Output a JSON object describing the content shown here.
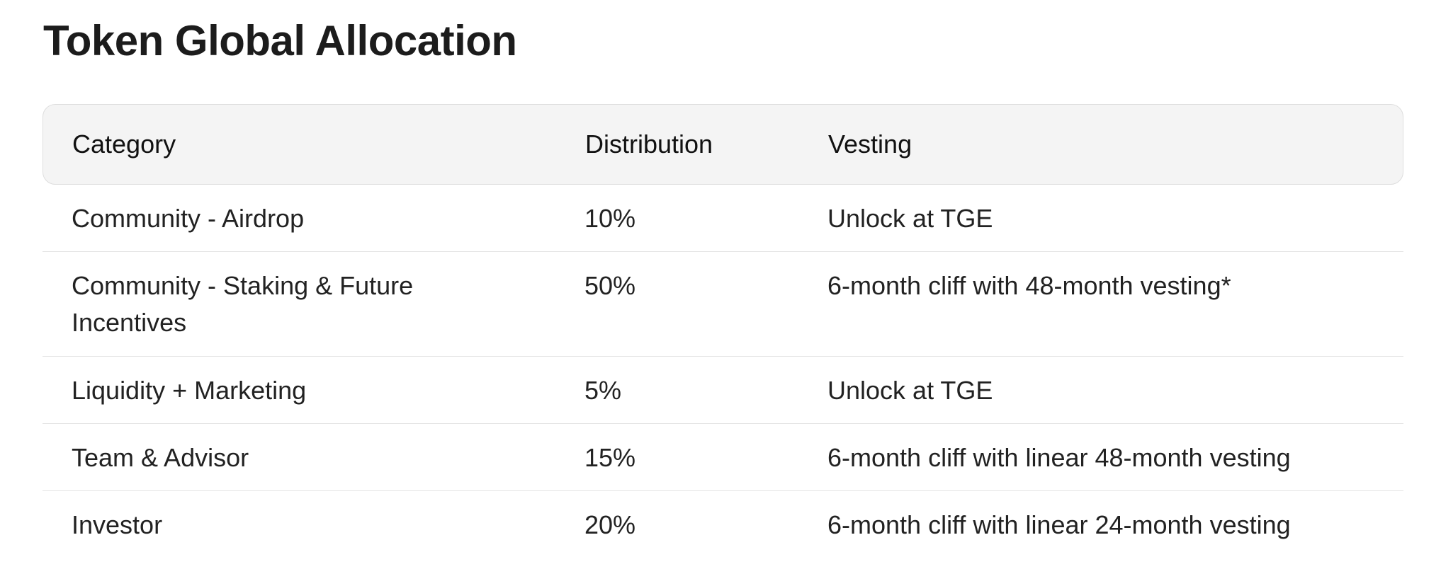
{
  "title": "Token Global Allocation",
  "table": {
    "headers": {
      "category": "Category",
      "distribution": "Distribution",
      "vesting": "Vesting"
    },
    "rows": [
      {
        "category": "Community - Airdrop",
        "distribution": "10%",
        "vesting": "Unlock at TGE"
      },
      {
        "category": "Community - Staking & Future Incentives",
        "distribution": "50%",
        "vesting": "6-month cliff with 48-month vesting*"
      },
      {
        "category": "Liquidity + Marketing",
        "distribution": "5%",
        "vesting": "Unlock at TGE"
      },
      {
        "category": "Team & Advisor",
        "distribution": "15%",
        "vesting": "6-month cliff with linear 48-month vesting"
      },
      {
        "category": "Investor",
        "distribution": "20%",
        "vesting": "6-month cliff with linear 24-month vesting"
      }
    ]
  }
}
